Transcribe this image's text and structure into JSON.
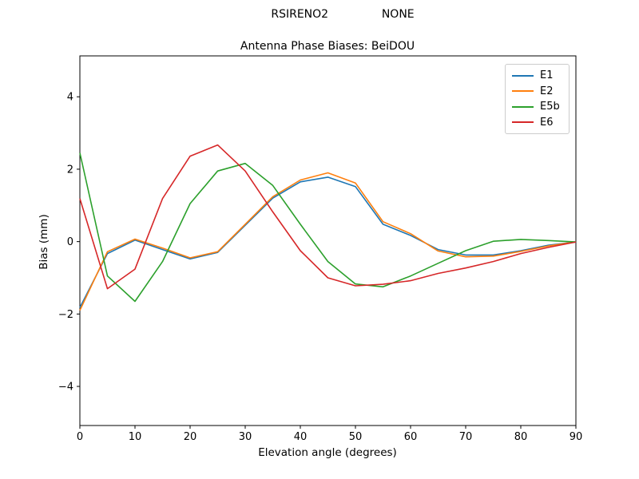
{
  "figure": {
    "suptitle": "RSIRENO2               NONE",
    "title": "Antenna Phase Biases: BeiDOU",
    "xlabel": "Elevation angle (degrees)",
    "ylabel": "Bias (mm)"
  },
  "chart_data": {
    "type": "line",
    "suptitle": "RSIRENO2               NONE",
    "title": "Antenna Phase Biases: BeiDOU",
    "xlabel": "Elevation angle (degrees)",
    "ylabel": "Bias (mm)",
    "xlim": [
      0,
      90
    ],
    "ylim": [
      -5.08,
      5.13
    ],
    "xticks": [
      0,
      10,
      20,
      30,
      40,
      50,
      60,
      70,
      80,
      90
    ],
    "yticks": [
      -4,
      -2,
      0,
      2,
      4
    ],
    "grid": false,
    "legend_position": "upper right",
    "x": [
      0,
      5,
      10,
      15,
      20,
      25,
      30,
      35,
      40,
      45,
      50,
      55,
      60,
      65,
      70,
      75,
      80,
      85,
      90
    ],
    "series": [
      {
        "name": "E1",
        "color": "#1f77b4",
        "values": [
          -1.82,
          -0.33,
          0.04,
          -0.22,
          -0.48,
          -0.3,
          0.45,
          1.2,
          1.65,
          1.78,
          1.52,
          0.48,
          0.17,
          -0.22,
          -0.37,
          -0.37,
          -0.25,
          -0.1,
          -0.01
        ]
      },
      {
        "name": "E2",
        "color": "#ff7f0e",
        "values": [
          -1.9,
          -0.28,
          0.07,
          -0.18,
          -0.45,
          -0.28,
          0.48,
          1.24,
          1.7,
          1.9,
          1.62,
          0.55,
          0.22,
          -0.26,
          -0.42,
          -0.4,
          -0.27,
          -0.12,
          -0.01
        ]
      },
      {
        "name": "E5b",
        "color": "#2ca02c",
        "values": [
          2.45,
          -0.95,
          -1.65,
          -0.55,
          1.05,
          1.95,
          2.16,
          1.55,
          0.48,
          -0.55,
          -1.17,
          -1.25,
          -0.95,
          -0.6,
          -0.25,
          0.01,
          0.06,
          0.03,
          -0.01
        ]
      },
      {
        "name": "E6",
        "color": "#d62728",
        "values": [
          1.19,
          -1.3,
          -0.76,
          1.19,
          2.36,
          2.67,
          1.95,
          0.82,
          -0.25,
          -1.0,
          -1.22,
          -1.18,
          -1.08,
          -0.88,
          -0.73,
          -0.55,
          -0.33,
          -0.16,
          -0.01
        ]
      }
    ]
  }
}
